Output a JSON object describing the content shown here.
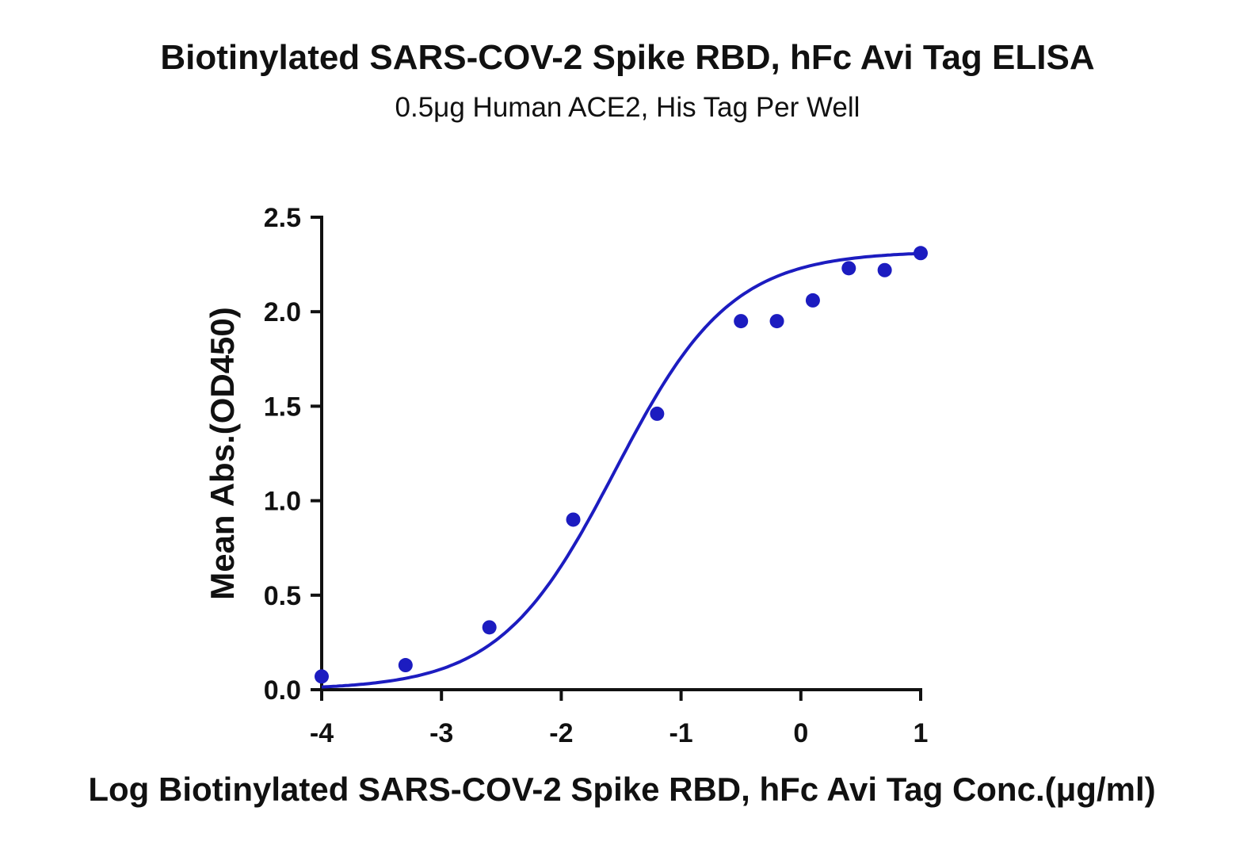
{
  "title": "Biotinylated SARS-COV-2 Spike RBD, hFc Avi Tag ELISA",
  "subtitle": "0.5μg Human ACE2, His Tag Per Well",
  "colors": {
    "series": "#1c1cc0",
    "axis": "#111111",
    "text": "#111111"
  },
  "chart_data": {
    "type": "scatter",
    "title": "Biotinylated SARS-COV-2 Spike RBD, hFc Avi Tag ELISA",
    "subtitle": "0.5μg Human ACE2, His Tag Per Well",
    "xlabel": "Log Biotinylated SARS-COV-2 Spike RBD, hFc Avi Tag Conc.(μg/ml)",
    "ylabel": "Mean Abs.(OD450)",
    "xlim": [
      -4,
      1
    ],
    "ylim": [
      0,
      2.5
    ],
    "x_ticks": [
      -4,
      -3,
      -2,
      -1,
      0,
      1
    ],
    "x_tick_labels": [
      "-4",
      "-3",
      "-2",
      "-1",
      "0",
      "1"
    ],
    "y_ticks": [
      0,
      0.5,
      1.0,
      1.5,
      2.0,
      2.5
    ],
    "y_tick_labels": [
      "0.0",
      "0.5",
      "1.0",
      "1.5",
      "2.0",
      "2.5"
    ],
    "grid": false,
    "legend": "none",
    "points": {
      "x": [
        -4.0,
        -3.3,
        -2.6,
        -1.9,
        -1.2,
        -0.5,
        -0.2,
        0.1,
        0.4,
        0.7,
        1.0
      ],
      "y": [
        0.07,
        0.13,
        0.33,
        0.9,
        1.46,
        1.95,
        1.95,
        2.06,
        2.23,
        2.22,
        2.31
      ]
    },
    "fit_curve": {
      "type": "four-parameter logistic",
      "bottom": 0.0,
      "top": 2.32,
      "log_ec50": -1.55,
      "hill_slope": 0.9
    }
  }
}
